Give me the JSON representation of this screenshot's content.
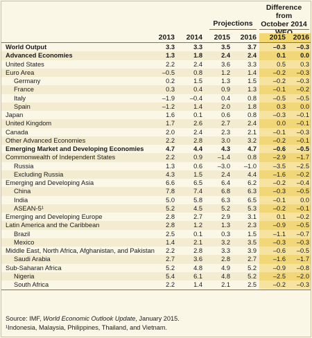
{
  "header": {
    "projections": "Projections",
    "diff_line1": "Difference from",
    "diff_line2": "October 2014",
    "diff_line3": "WEO projections",
    "years": [
      "2013",
      "2014",
      "2015",
      "2016",
      "2015",
      "2016"
    ]
  },
  "rows": [
    {
      "name": "World Output",
      "indent": 0,
      "bold": true,
      "values": [
        "3.3",
        "3.3",
        "3.5",
        "3.7",
        "–0.3",
        "–0.3"
      ]
    },
    {
      "name": "Advanced Economies",
      "indent": 1,
      "bold": true,
      "values": [
        "1.3",
        "1.8",
        "2.4",
        "2.4",
        "0.1",
        "0.0"
      ]
    },
    {
      "name": "United States",
      "indent": 1,
      "bold": false,
      "values": [
        "2.2",
        "2.4",
        "3.6",
        "3.3",
        "0.5",
        "0.3"
      ]
    },
    {
      "name": "Euro Area",
      "indent": 1,
      "bold": false,
      "values": [
        "–0.5",
        "0.8",
        "1.2",
        "1.4",
        "–0.2",
        "–0.3"
      ]
    },
    {
      "name": "Germany",
      "indent": 2,
      "bold": false,
      "values": [
        "0.2",
        "1.5",
        "1.3",
        "1.5",
        "–0.2",
        "–0.3"
      ]
    },
    {
      "name": "France",
      "indent": 2,
      "bold": false,
      "values": [
        "0.3",
        "0.4",
        "0.9",
        "1.3",
        "–0.1",
        "–0.2"
      ]
    },
    {
      "name": "Italy",
      "indent": 2,
      "bold": false,
      "values": [
        "–1.9",
        "–0.4",
        "0.4",
        "0.8",
        "–0.5",
        "–0.5"
      ]
    },
    {
      "name": "Spain",
      "indent": 2,
      "bold": false,
      "values": [
        "–1.2",
        "1.4",
        "2.0",
        "1.8",
        "0.3",
        "0.0"
      ]
    },
    {
      "name": "Japan",
      "indent": 1,
      "bold": false,
      "values": [
        "1.6",
        "0.1",
        "0.6",
        "0.8",
        "–0.3",
        "–0.1"
      ]
    },
    {
      "name": "United Kingdom",
      "indent": 1,
      "bold": false,
      "values": [
        "1.7",
        "2.6",
        "2.7",
        "2.4",
        "0.0",
        "–0.1"
      ]
    },
    {
      "name": "Canada",
      "indent": 1,
      "bold": false,
      "values": [
        "2.0",
        "2.4",
        "2.3",
        "2.1",
        "–0.1",
        "–0.3"
      ]
    },
    {
      "name": "Other Advanced Economies",
      "indent": 1,
      "bold": false,
      "values": [
        "2.2",
        "2.8",
        "3.0",
        "3.2",
        "–0.2",
        "–0.1"
      ]
    },
    {
      "name": "Emerging Market and Developing Economies",
      "indent": 1,
      "bold": true,
      "values": [
        "4.7",
        "4.4",
        "4.3",
        "4.7",
        "–0.6",
        "–0.5"
      ]
    },
    {
      "name": "Commonwealth of Independent States",
      "indent": 1,
      "bold": false,
      "values": [
        "2.2",
        "0.9",
        "–1.4",
        "0.8",
        "–2.9",
        "–1.7"
      ]
    },
    {
      "name": "Russia",
      "indent": 2,
      "bold": false,
      "values": [
        "1.3",
        "0.6",
        "–3.0",
        "–1.0",
        "–3.5",
        "–2.5"
      ]
    },
    {
      "name": "Excluding Russia",
      "indent": 2,
      "bold": false,
      "values": [
        "4.3",
        "1.5",
        "2.4",
        "4.4",
        "–1.6",
        "–0.2"
      ]
    },
    {
      "name": "Emerging and Developing Asia",
      "indent": 1,
      "bold": false,
      "values": [
        "6.6",
        "6.5",
        "6.4",
        "6.2",
        "–0.2",
        "–0.4"
      ]
    },
    {
      "name": "China",
      "indent": 2,
      "bold": false,
      "values": [
        "7.8",
        "7.4",
        "6.8",
        "6.3",
        "–0.3",
        "–0.5"
      ]
    },
    {
      "name": "India",
      "indent": 2,
      "bold": false,
      "values": [
        "5.0",
        "5.8",
        "6.3",
        "6.5",
        "–0.1",
        "0.0"
      ]
    },
    {
      "name": "ASEAN-5¹",
      "indent": 2,
      "bold": false,
      "values": [
        "5.2",
        "4.5",
        "5.2",
        "5.3",
        "–0.2",
        "–0.1"
      ]
    },
    {
      "name": "Emerging and Developing Europe",
      "indent": 1,
      "bold": false,
      "values": [
        "2.8",
        "2.7",
        "2.9",
        "3.1",
        "0.1",
        "–0.2"
      ]
    },
    {
      "name": "Latin America and the Caribbean",
      "indent": 1,
      "bold": false,
      "values": [
        "2.8",
        "1.2",
        "1.3",
        "2.3",
        "–0.9",
        "–0.5"
      ]
    },
    {
      "name": "Brazil",
      "indent": 2,
      "bold": false,
      "values": [
        "2.5",
        "0.1",
        "0.3",
        "1.5",
        "–1.1",
        "–0.7"
      ]
    },
    {
      "name": "Mexico",
      "indent": 2,
      "bold": false,
      "values": [
        "1.4",
        "2.1",
        "3.2",
        "3.5",
        "–0.3",
        "–0.3"
      ]
    },
    {
      "name": "Middle East, North Africa, Afghanistan, and Pakistan",
      "indent": 1,
      "bold": false,
      "values": [
        "2.2",
        "2.8",
        "3.3",
        "3.9",
        "–0.6",
        "–0.5"
      ]
    },
    {
      "name": "Saudi Arabia",
      "indent": 2,
      "bold": false,
      "values": [
        "2.7",
        "3.6",
        "2.8",
        "2.7",
        "–1.6",
        "–1.7"
      ]
    },
    {
      "name": "Sub-Saharan Africa",
      "indent": 1,
      "bold": false,
      "values": [
        "5.2",
        "4.8",
        "4.9",
        "5.2",
        "–0.9",
        "–0.8"
      ]
    },
    {
      "name": "Nigeria",
      "indent": 2,
      "bold": false,
      "values": [
        "5.4",
        "6.1",
        "4.8",
        "5.2",
        "–2.5",
        "–2.0"
      ]
    },
    {
      "name": "South Africa",
      "indent": 2,
      "bold": false,
      "values": [
        "2.2",
        "1.4",
        "2.1",
        "2.5",
        "–0.2",
        "–0.3"
      ]
    }
  ],
  "footer": {
    "source_prefix": "Source: IMF, ",
    "source_title": "World Economic Outlook Update",
    "source_suffix": ", January 2015.",
    "note": "¹Indonesia, Malaysia, Philippines, Thailand, and Vietnam."
  },
  "colors": {
    "background": "#fbf7e6",
    "shade": "#f4ecd0",
    "highlight": "#f3d86f"
  }
}
